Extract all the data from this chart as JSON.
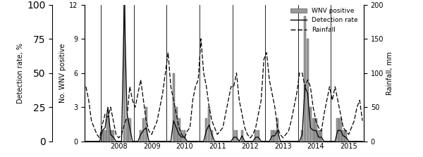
{
  "ylabel_left_outer": "Detection rate, %",
  "ylabel_left_inner": "No. WNV positive",
  "ylabel_right": "Rainfall, mm",
  "bar_color": "#999999",
  "bar_edge_color": "#555555",
  "line_color": "#000000",
  "rain_color": "#000000",
  "bar_ylim": [
    0,
    12
  ],
  "right_ylim": [
    0,
    200
  ],
  "legend_labels": [
    "WNV positive",
    "Detection rate",
    "Rainfall"
  ],
  "wnv_positive": [
    0,
    0,
    0,
    0,
    0,
    0,
    1,
    1,
    2,
    1,
    1,
    0,
    0,
    0,
    12,
    2,
    2,
    0,
    0,
    0,
    1,
    2,
    3,
    0,
    0,
    0,
    0,
    0,
    0,
    0,
    0,
    0,
    6,
    3,
    2,
    1,
    1,
    0,
    0,
    0,
    0,
    0,
    0,
    0,
    2,
    3,
    1,
    0,
    0,
    0,
    0,
    0,
    0,
    0,
    1,
    1,
    0,
    1,
    0,
    0,
    0,
    0,
    1,
    1,
    0,
    0,
    0,
    0,
    1,
    1,
    2,
    0,
    0,
    0,
    0,
    0,
    0,
    0,
    0,
    1,
    11,
    9,
    3,
    2,
    2,
    1,
    1,
    0,
    0,
    0,
    0,
    0,
    2,
    2,
    1,
    1,
    0,
    0,
    0,
    0,
    0,
    0
  ],
  "detection_rate_raw": [
    0,
    0,
    0,
    0,
    0,
    0,
    8,
    10,
    25,
    5,
    3,
    0,
    0,
    0,
    100,
    20,
    10,
    0,
    0,
    0,
    5,
    8,
    10,
    0,
    0,
    0,
    0,
    0,
    0,
    0,
    0,
    0,
    15,
    10,
    5,
    3,
    3,
    0,
    0,
    0,
    0,
    0,
    0,
    0,
    8,
    12,
    5,
    0,
    0,
    0,
    0,
    0,
    0,
    0,
    3,
    3,
    0,
    4,
    0,
    0,
    0,
    0,
    3,
    3,
    0,
    0,
    0,
    0,
    4,
    4,
    8,
    0,
    0,
    0,
    0,
    0,
    0,
    0,
    0,
    5,
    40,
    35,
    10,
    8,
    8,
    3,
    3,
    0,
    0,
    0,
    0,
    0,
    8,
    8,
    4,
    3,
    0,
    0,
    0,
    0,
    0,
    0
  ],
  "rainfall": [
    80,
    60,
    30,
    20,
    10,
    5,
    25,
    40,
    35,
    50,
    30,
    10,
    5,
    10,
    25,
    35,
    80,
    60,
    50,
    70,
    90,
    60,
    30,
    15,
    10,
    20,
    30,
    50,
    70,
    100,
    130,
    80,
    60,
    40,
    20,
    10,
    5,
    15,
    20,
    60,
    80,
    90,
    150,
    100,
    80,
    50,
    30,
    20,
    10,
    15,
    20,
    40,
    60,
    80,
    80,
    100,
    60,
    40,
    20,
    10,
    5,
    10,
    20,
    40,
    60,
    120,
    130,
    90,
    70,
    50,
    20,
    10,
    5,
    10,
    15,
    30,
    50,
    70,
    100,
    100,
    80,
    90,
    80,
    50,
    30,
    20,
    15,
    40,
    60,
    80,
    60,
    80,
    60,
    40,
    20,
    15,
    10,
    20,
    30,
    50,
    60,
    30
  ],
  "year_boundary_indices": [
    6,
    18,
    30,
    42,
    54,
    66,
    78,
    90
  ],
  "year_labels": [
    "2008",
    "2009",
    "2010",
    "2011",
    "2012",
    "2013",
    "2014",
    "2015"
  ]
}
